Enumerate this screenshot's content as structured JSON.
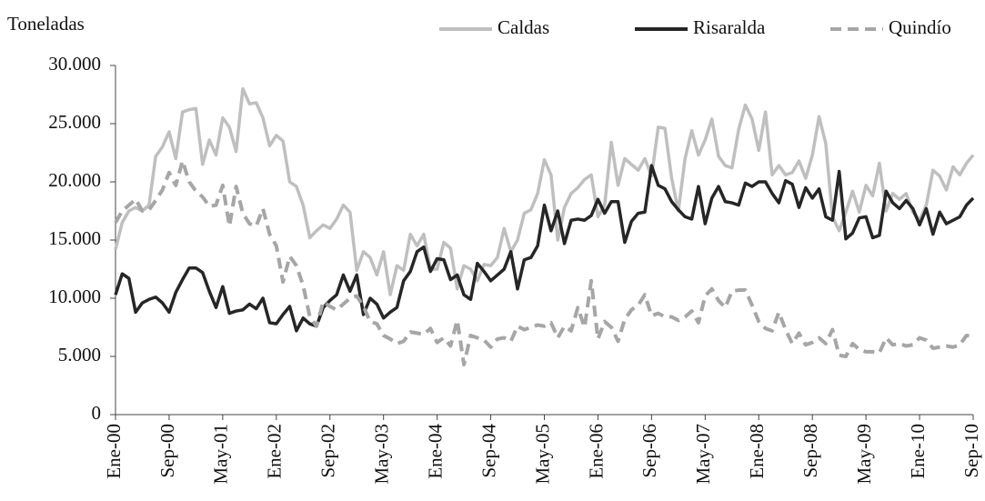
{
  "chart_data": {
    "type": "line",
    "y_label": "Toneladas",
    "categories": [
      "Ene-00",
      null,
      null,
      null,
      null,
      null,
      null,
      null,
      "Sep-00",
      null,
      null,
      null,
      null,
      null,
      null,
      null,
      "May-01",
      null,
      null,
      null,
      null,
      null,
      null,
      null,
      "Ene-02",
      null,
      null,
      null,
      null,
      null,
      null,
      null,
      "Sep-02",
      null,
      null,
      null,
      null,
      null,
      null,
      null,
      "May-03",
      null,
      null,
      null,
      null,
      null,
      null,
      null,
      "Ene-04",
      null,
      null,
      null,
      null,
      null,
      null,
      null,
      "Sep-04",
      null,
      null,
      null,
      null,
      null,
      null,
      null,
      "May-05",
      null,
      null,
      null,
      null,
      null,
      null,
      null,
      "Ene-06",
      null,
      null,
      null,
      null,
      null,
      null,
      null,
      "Sep-06",
      null,
      null,
      null,
      null,
      null,
      null,
      null,
      "May-07",
      null,
      null,
      null,
      null,
      null,
      null,
      null,
      "Ene-08",
      null,
      null,
      null,
      null,
      null,
      null,
      null,
      "Sep-08",
      null,
      null,
      null,
      null,
      null,
      null,
      null,
      "May-09",
      null,
      null,
      null,
      null,
      null,
      null,
      null,
      "Ene-10",
      null,
      null,
      null,
      null,
      null,
      null,
      null,
      "Sep-10"
    ],
    "series": [
      {
        "name": "Caldas",
        "color": "#bfbfbf",
        "dash": "solid",
        "values": [
          14200,
          16500,
          17500,
          17800,
          17500,
          18000,
          22200,
          23000,
          24300,
          22000,
          26000,
          26200,
          26300,
          21500,
          23600,
          22300,
          25500,
          24700,
          22600,
          28000,
          26700,
          26800,
          25500,
          23100,
          24000,
          23500,
          20000,
          19600,
          18000,
          15200,
          15800,
          16300,
          16000,
          16800,
          18000,
          17400,
          12400,
          14000,
          13500,
          12000,
          14000,
          10300,
          12800,
          12400,
          15500,
          14500,
          15500,
          12500,
          12500,
          14800,
          14300,
          10800,
          12800,
          12500,
          11500,
          12900,
          12800,
          13500,
          16000,
          14000,
          15000,
          17300,
          17600,
          19000,
          21900,
          20600,
          15000,
          17800,
          19000,
          19500,
          20200,
          20600,
          17000,
          18000,
          23400,
          19700,
          22000,
          21500,
          21000,
          22000,
          20500,
          24700,
          24600,
          20300,
          17500,
          22000,
          24400,
          22300,
          23600,
          25400,
          22200,
          21400,
          21200,
          24500,
          26600,
          25400,
          22700,
          26000,
          20600,
          21400,
          20600,
          20800,
          21800,
          20300,
          22300,
          25600,
          23300,
          17000,
          15800,
          17400,
          19200,
          17400,
          19700,
          18800,
          21600,
          17500,
          19000,
          18500,
          19000,
          17400,
          16700,
          18000,
          21000,
          20500,
          19300,
          21300,
          20600,
          21600,
          22300
        ]
      },
      {
        "name": "Risaralda",
        "color": "#262626",
        "dash": "solid",
        "values": [
          10300,
          12100,
          11700,
          8800,
          9600,
          9900,
          10100,
          9600,
          8800,
          10500,
          11600,
          12600,
          12600,
          12200,
          10600,
          9200,
          11000,
          8700,
          8900,
          9000,
          9500,
          9100,
          10000,
          7900,
          7800,
          8600,
          9300,
          7200,
          8300,
          7800,
          7600,
          9200,
          9800,
          10300,
          12000,
          10600,
          12000,
          8600,
          10000,
          9500,
          8300,
          8800,
          9200,
          11500,
          12300,
          14000,
          14400,
          12300,
          13400,
          13300,
          11600,
          12000,
          10300,
          9900,
          13000,
          12300,
          11500,
          12000,
          12500,
          14000,
          10800,
          13300,
          13500,
          14500,
          18000,
          15800,
          17500,
          14700,
          16700,
          16800,
          16700,
          17100,
          18500,
          17300,
          18300,
          18300,
          14800,
          16600,
          17300,
          17400,
          21400,
          19700,
          19400,
          18300,
          17600,
          17000,
          16800,
          19600,
          16400,
          18600,
          19600,
          18300,
          18200,
          18000,
          19900,
          19600,
          20000,
          20000,
          19000,
          18200,
          20100,
          19800,
          17800,
          19500,
          18600,
          19400,
          17000,
          16700,
          20900,
          15100,
          15600,
          16900,
          17000,
          15200,
          15400,
          19200,
          18200,
          17700,
          18400,
          17700,
          16300,
          17700,
          15500,
          17400,
          16400,
          16700,
          17000,
          18000,
          18600
        ]
      },
      {
        "name": "Quindío",
        "color": "#a6a6a6",
        "dash": "dashed",
        "values": [
          16500,
          17500,
          18000,
          18500,
          17500,
          17600,
          18400,
          19300,
          20800,
          19700,
          21800,
          20000,
          19200,
          18700,
          17900,
          18000,
          19700,
          16200,
          19600,
          17300,
          16400,
          16200,
          17700,
          15500,
          14500,
          11400,
          13600,
          12800,
          11100,
          8400,
          7600,
          9700,
          9300,
          9000,
          9500,
          10000,
          10200,
          9300,
          8000,
          7800,
          6800,
          6500,
          6100,
          6300,
          7100,
          7000,
          6900,
          7400,
          6200,
          6600,
          5900,
          8100,
          4300,
          6800,
          6600,
          6400,
          5800,
          6500,
          6600,
          6300,
          7600,
          7300,
          7500,
          7700,
          7600,
          7900,
          6600,
          7600,
          7200,
          9200,
          7500,
          11500,
          6500,
          8000,
          7500,
          6300,
          8200,
          9000,
          9400,
          10300,
          8500,
          8700,
          8400,
          8400,
          8100,
          8400,
          8900,
          7900,
          10200,
          10800,
          9800,
          9200,
          10600,
          10700,
          10700,
          9400,
          8000,
          7400,
          7200,
          8800,
          7300,
          6100,
          7000,
          6000,
          6200,
          6600,
          6100,
          7300,
          5100,
          5000,
          6100,
          5600,
          5400,
          5400,
          5300,
          6600,
          6000,
          6100,
          5900,
          6000,
          6600,
          6400,
          5700,
          5800,
          5900,
          5800,
          6000,
          6800,
          6700
        ]
      }
    ],
    "ylim": [
      0,
      30000
    ],
    "yticks": [
      0,
      {
        "value": 5000,
        "label": "5.000"
      },
      {
        "value": 10000,
        "label": "10.000"
      },
      {
        "value": 15000,
        "label": "15.000"
      },
      {
        "value": 20000,
        "label": "20.000"
      },
      {
        "value": 25000,
        "label": "25.000"
      },
      {
        "value": 30000,
        "label": "30.000"
      }
    ],
    "grid": false,
    "legend": "top-right"
  }
}
